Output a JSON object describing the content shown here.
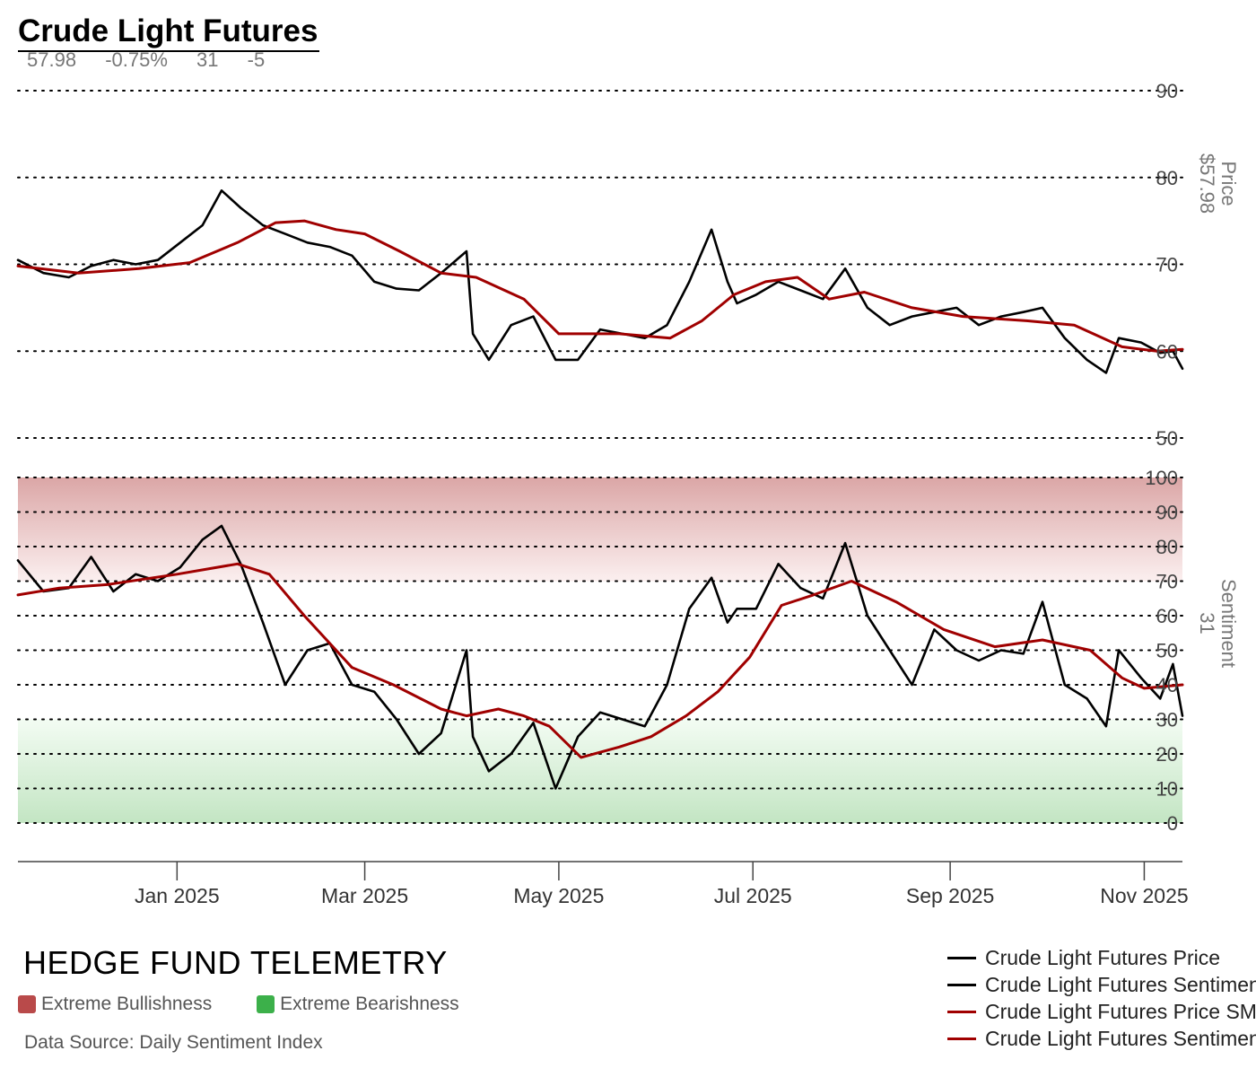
{
  "title": "Crude Light Futures",
  "stats": {
    "price": "57.98",
    "change": "-0.75%",
    "sentiment": "31",
    "sentiment_change": "-5"
  },
  "brand": "HEDGE FUND TELEMETRY",
  "zone_legend": [
    {
      "label": "Extreme Bullishness",
      "color": "#b94a4a"
    },
    {
      "label": "Extreme Bearishness",
      "color": "#3cb04a"
    }
  ],
  "source": "Data Source: Daily Sentiment Index",
  "colors": {
    "price": "#000000",
    "average": "#a00000",
    "grid": "#000000",
    "axis_text": "#444444"
  },
  "series_legend": [
    {
      "label": "Crude Light Futures Price",
      "color": "#000000"
    },
    {
      "label": "Crude Light Futures Sentiment",
      "color": "#000000"
    },
    {
      "label": "Crude Light Futures Price SMA",
      "color": "#a00000"
    },
    {
      "label": "Crude Light Futures Sentiment SMA",
      "color": "#a00000"
    }
  ],
  "chart_data": [
    {
      "type": "line",
      "panel": "price",
      "ylabel": "Price",
      "last_value_label": "$57.98",
      "ylim": [
        50,
        90
      ],
      "yticks": [
        50,
        60,
        70,
        80,
        90
      ],
      "xlim": [
        "2024-11-12",
        "2025-11-13"
      ],
      "grid": true,
      "series": [
        {
          "name": "Crude Light Futures Price",
          "color": "#000000",
          "points": [
            [
              "2024-11-12",
              70.5
            ],
            [
              "2024-11-20",
              69.0
            ],
            [
              "2024-11-28",
              68.5
            ],
            [
              "2024-12-05",
              69.8
            ],
            [
              "2024-12-12",
              70.5
            ],
            [
              "2024-12-19",
              70.0
            ],
            [
              "2024-12-26",
              70.5
            ],
            [
              "2025-01-02",
              72.5
            ],
            [
              "2025-01-09",
              74.5
            ],
            [
              "2025-01-15",
              78.5
            ],
            [
              "2025-01-21",
              76.5
            ],
            [
              "2025-01-28",
              74.5
            ],
            [
              "2025-02-04",
              73.5
            ],
            [
              "2025-02-11",
              72.5
            ],
            [
              "2025-02-18",
              72.0
            ],
            [
              "2025-02-25",
              71.0
            ],
            [
              "2025-03-04",
              68.0
            ],
            [
              "2025-03-11",
              67.2
            ],
            [
              "2025-03-18",
              67.0
            ],
            [
              "2025-03-25",
              69.0
            ],
            [
              "2025-04-02",
              71.5
            ],
            [
              "2025-04-04",
              62.0
            ],
            [
              "2025-04-09",
              59.0
            ],
            [
              "2025-04-16",
              63.0
            ],
            [
              "2025-04-23",
              64.0
            ],
            [
              "2025-04-30",
              59.0
            ],
            [
              "2025-05-07",
              59.0
            ],
            [
              "2025-05-14",
              62.5
            ],
            [
              "2025-05-21",
              62.0
            ],
            [
              "2025-05-28",
              61.5
            ],
            [
              "2025-06-04",
              63.0
            ],
            [
              "2025-06-11",
              68.0
            ],
            [
              "2025-06-18",
              74.0
            ],
            [
              "2025-06-23",
              68.0
            ],
            [
              "2025-06-26",
              65.5
            ],
            [
              "2025-07-02",
              66.5
            ],
            [
              "2025-07-09",
              68.0
            ],
            [
              "2025-07-16",
              67.0
            ],
            [
              "2025-07-23",
              66.0
            ],
            [
              "2025-07-30",
              69.5
            ],
            [
              "2025-08-06",
              65.0
            ],
            [
              "2025-08-13",
              63.0
            ],
            [
              "2025-08-20",
              64.0
            ],
            [
              "2025-08-27",
              64.5
            ],
            [
              "2025-09-03",
              65.0
            ],
            [
              "2025-09-10",
              63.0
            ],
            [
              "2025-09-17",
              64.0
            ],
            [
              "2025-09-24",
              64.5
            ],
            [
              "2025-09-30",
              65.0
            ],
            [
              "2025-10-07",
              61.5
            ],
            [
              "2025-10-14",
              59.0
            ],
            [
              "2025-10-20",
              57.5
            ],
            [
              "2025-10-24",
              61.5
            ],
            [
              "2025-10-31",
              61.0
            ],
            [
              "2025-11-06",
              59.8
            ],
            [
              "2025-11-10",
              60.0
            ],
            [
              "2025-11-13",
              57.98
            ]
          ]
        },
        {
          "name": "Crude Light Futures Price SMA",
          "color": "#a00000",
          "points": [
            [
              "2024-11-12",
              69.8
            ],
            [
              "2024-12-01",
              69.0
            ],
            [
              "2024-12-20",
              69.5
            ],
            [
              "2025-01-05",
              70.2
            ],
            [
              "2025-01-20",
              72.5
            ],
            [
              "2025-02-01",
              74.8
            ],
            [
              "2025-02-10",
              75.0
            ],
            [
              "2025-02-20",
              74.0
            ],
            [
              "2025-03-01",
              73.5
            ],
            [
              "2025-03-12",
              71.5
            ],
            [
              "2025-03-25",
              69.0
            ],
            [
              "2025-04-05",
              68.5
            ],
            [
              "2025-04-20",
              66.0
            ],
            [
              "2025-05-01",
              62.0
            ],
            [
              "2025-05-20",
              62.0
            ],
            [
              "2025-06-05",
              61.5
            ],
            [
              "2025-06-15",
              63.5
            ],
            [
              "2025-06-25",
              66.5
            ],
            [
              "2025-07-05",
              68.0
            ],
            [
              "2025-07-15",
              68.5
            ],
            [
              "2025-07-25",
              66.0
            ],
            [
              "2025-08-05",
              66.8
            ],
            [
              "2025-08-20",
              65.0
            ],
            [
              "2025-09-05",
              64.0
            ],
            [
              "2025-09-25",
              63.5
            ],
            [
              "2025-10-10",
              63.0
            ],
            [
              "2025-10-25",
              60.5
            ],
            [
              "2025-11-05",
              60.0
            ],
            [
              "2025-11-13",
              60.2
            ]
          ]
        }
      ]
    },
    {
      "type": "line",
      "panel": "sentiment",
      "ylabel": "Sentiment",
      "last_value_label": "31",
      "ylim": [
        0,
        100
      ],
      "yticks": [
        0,
        10,
        20,
        30,
        40,
        50,
        60,
        70,
        80,
        90,
        100
      ],
      "extreme_bullish_band": [
        70,
        100
      ],
      "extreme_bearish_band": [
        0,
        30
      ],
      "xlim": [
        "2024-11-12",
        "2025-11-13"
      ],
      "xticks": [
        "Jan 2025",
        "Mar 2025",
        "May 2025",
        "Jul 2025",
        "Sep 2025",
        "Nov 2025"
      ],
      "grid": true,
      "series": [
        {
          "name": "Crude Light Futures Sentiment",
          "color": "#000000",
          "points": [
            [
              "2024-11-12",
              76
            ],
            [
              "2024-11-20",
              67
            ],
            [
              "2024-11-28",
              68
            ],
            [
              "2024-12-05",
              77
            ],
            [
              "2024-12-12",
              67
            ],
            [
              "2024-12-19",
              72
            ],
            [
              "2024-12-26",
              70
            ],
            [
              "2025-01-02",
              74
            ],
            [
              "2025-01-09",
              82
            ],
            [
              "2025-01-15",
              86
            ],
            [
              "2025-01-21",
              75
            ],
            [
              "2025-01-28",
              58
            ],
            [
              "2025-02-04",
              40
            ],
            [
              "2025-02-11",
              50
            ],
            [
              "2025-02-18",
              52
            ],
            [
              "2025-02-25",
              40
            ],
            [
              "2025-03-04",
              38
            ],
            [
              "2025-03-11",
              30
            ],
            [
              "2025-03-18",
              20
            ],
            [
              "2025-03-25",
              26
            ],
            [
              "2025-04-02",
              50
            ],
            [
              "2025-04-04",
              25
            ],
            [
              "2025-04-09",
              15
            ],
            [
              "2025-04-16",
              20
            ],
            [
              "2025-04-23",
              29
            ],
            [
              "2025-04-30",
              10
            ],
            [
              "2025-05-07",
              25
            ],
            [
              "2025-05-14",
              32
            ],
            [
              "2025-05-21",
              30
            ],
            [
              "2025-05-28",
              28
            ],
            [
              "2025-06-04",
              40
            ],
            [
              "2025-06-11",
              62
            ],
            [
              "2025-06-18",
              71
            ],
            [
              "2025-06-23",
              58
            ],
            [
              "2025-06-26",
              62
            ],
            [
              "2025-07-02",
              62
            ],
            [
              "2025-07-09",
              75
            ],
            [
              "2025-07-16",
              68
            ],
            [
              "2025-07-23",
              65
            ],
            [
              "2025-07-30",
              81
            ],
            [
              "2025-08-06",
              60
            ],
            [
              "2025-08-13",
              50
            ],
            [
              "2025-08-20",
              40
            ],
            [
              "2025-08-27",
              56
            ],
            [
              "2025-09-03",
              50
            ],
            [
              "2025-09-10",
              47
            ],
            [
              "2025-09-17",
              50
            ],
            [
              "2025-09-24",
              49
            ],
            [
              "2025-09-30",
              64
            ],
            [
              "2025-10-07",
              40
            ],
            [
              "2025-10-14",
              36
            ],
            [
              "2025-10-20",
              28
            ],
            [
              "2025-10-24",
              50
            ],
            [
              "2025-10-31",
              42
            ],
            [
              "2025-11-06",
              36
            ],
            [
              "2025-11-10",
              46
            ],
            [
              "2025-11-13",
              31
            ]
          ]
        },
        {
          "name": "Crude Light Futures Sentiment SMA",
          "color": "#a00000",
          "points": [
            [
              "2024-11-12",
              66
            ],
            [
              "2024-11-25",
              68
            ],
            [
              "2024-12-10",
              69
            ],
            [
              "2025-01-01",
              72
            ],
            [
              "2025-01-20",
              75
            ],
            [
              "2025-01-30",
              72
            ],
            [
              "2025-02-10",
              60
            ],
            [
              "2025-02-25",
              45
            ],
            [
              "2025-03-10",
              40
            ],
            [
              "2025-03-25",
              33
            ],
            [
              "2025-04-02",
              31
            ],
            [
              "2025-04-12",
              33
            ],
            [
              "2025-04-20",
              31
            ],
            [
              "2025-04-28",
              28
            ],
            [
              "2025-05-08",
              19
            ],
            [
              "2025-05-20",
              22
            ],
            [
              "2025-05-30",
              25
            ],
            [
              "2025-06-10",
              31
            ],
            [
              "2025-06-20",
              38
            ],
            [
              "2025-06-30",
              48
            ],
            [
              "2025-07-10",
              63
            ],
            [
              "2025-07-20",
              66
            ],
            [
              "2025-08-01",
              70
            ],
            [
              "2025-08-15",
              64
            ],
            [
              "2025-08-30",
              56
            ],
            [
              "2025-09-15",
              51
            ],
            [
              "2025-09-30",
              53
            ],
            [
              "2025-10-15",
              50
            ],
            [
              "2025-10-25",
              42
            ],
            [
              "2025-11-01",
              39
            ],
            [
              "2025-11-13",
              40
            ]
          ]
        }
      ]
    }
  ]
}
